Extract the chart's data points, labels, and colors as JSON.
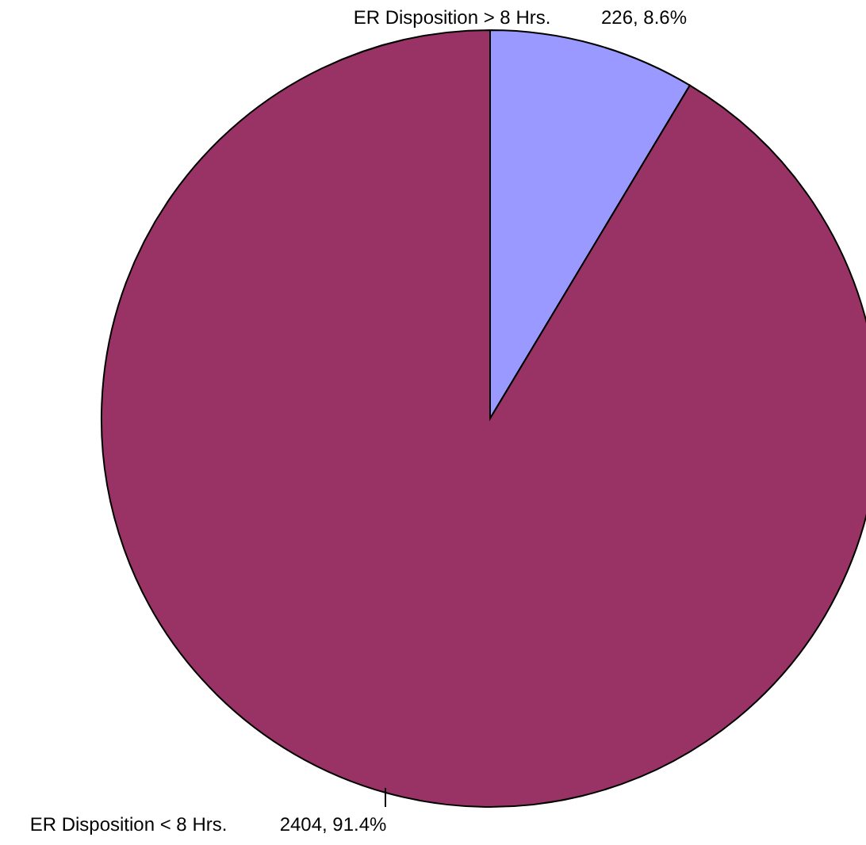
{
  "chart_data": {
    "type": "pie",
    "categories": [
      "ER Disposition > 8 Hrs.",
      "ER Disposition < 8 Hrs."
    ],
    "values": [
      226,
      2404
    ],
    "colors": [
      "#9999ff",
      "#993366"
    ],
    "value_labels": [
      "226, 8.6%",
      "2404, 91.4%"
    ]
  }
}
